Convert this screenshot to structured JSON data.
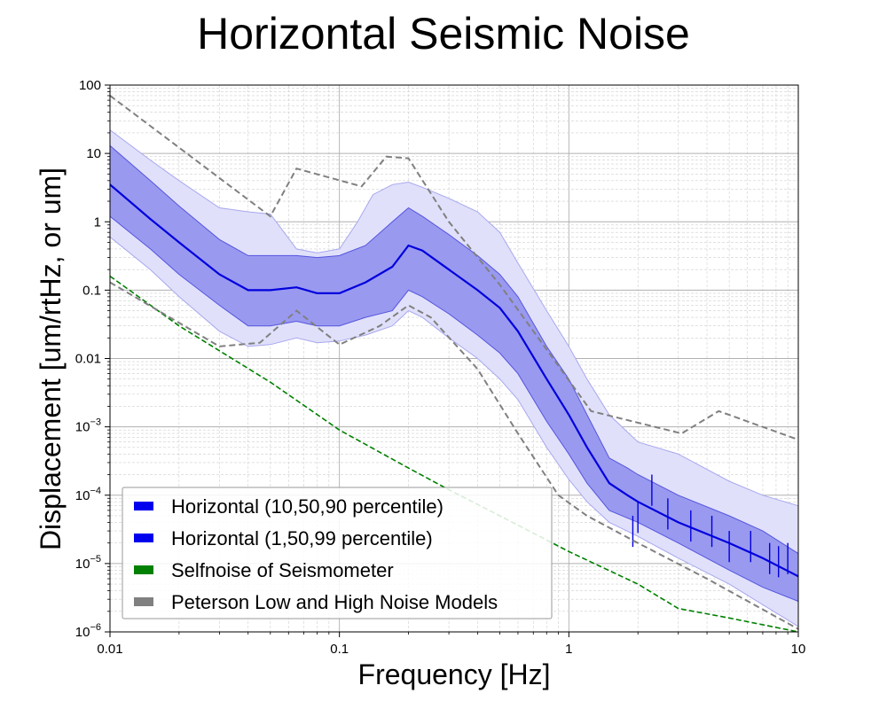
{
  "chart_data": {
    "type": "line",
    "title": "Horizontal Seismic Noise",
    "xlabel": "Frequency [Hz]",
    "ylabel": "Displacement [um/rtHz, or um]",
    "x_scale": "log",
    "y_scale": "log",
    "xlim": [
      0.01,
      10
    ],
    "ylim": [
      1e-06,
      100
    ],
    "grid": true,
    "legend_position": "lower-left",
    "x_ticks": [
      {
        "value": 0.01,
        "label": "0.01"
      },
      {
        "value": 0.1,
        "label": "0.1"
      },
      {
        "value": 1,
        "label": "1"
      },
      {
        "value": 10,
        "label": "10"
      }
    ],
    "y_ticks": [
      {
        "value": 100,
        "label": "100",
        "exp": ""
      },
      {
        "value": 10,
        "label": "10",
        "exp": ""
      },
      {
        "value": 1,
        "label": "1",
        "exp": ""
      },
      {
        "value": 0.1,
        "label": "0.1",
        "exp": ""
      },
      {
        "value": 0.01,
        "label": "0.01",
        "exp": ""
      },
      {
        "value": 0.001,
        "label": "10",
        "exp": "−3"
      },
      {
        "value": 0.0001,
        "label": "10",
        "exp": "−4"
      },
      {
        "value": 1e-05,
        "label": "10",
        "exp": "−5"
      },
      {
        "value": 1e-06,
        "label": "10",
        "exp": "−6"
      }
    ],
    "legend": [
      {
        "label": "Horizontal (10,50,90 percentile)",
        "color": "#0000ee"
      },
      {
        "label": "Horizontal (1,50,99 percentile)",
        "color": "#0000ee"
      },
      {
        "label": "Selfnoise of Seismometer",
        "color": "#008000"
      },
      {
        "label": "Peterson Low and High Noise Models",
        "color": "#808080"
      }
    ],
    "colors": {
      "median": "#0000dd",
      "band_inner": "#9999f0",
      "band_outer": "#e0e0fb",
      "band_outer_edge": "#a8a8ee",
      "band_inner_edge": "#5555dd",
      "selfnoise": "#008000",
      "peterson": "#808080"
    },
    "median_points": [
      [
        0.01,
        3.5
      ],
      [
        0.015,
        1.1
      ],
      [
        0.02,
        0.5
      ],
      [
        0.03,
        0.17
      ],
      [
        0.04,
        0.1
      ],
      [
        0.05,
        0.1
      ],
      [
        0.065,
        0.11
      ],
      [
        0.08,
        0.09
      ],
      [
        0.1,
        0.09
      ],
      [
        0.13,
        0.13
      ],
      [
        0.17,
        0.22
      ],
      [
        0.2,
        0.45
      ],
      [
        0.23,
        0.38
      ],
      [
        0.3,
        0.2
      ],
      [
        0.4,
        0.1
      ],
      [
        0.5,
        0.055
      ],
      [
        0.6,
        0.025
      ],
      [
        0.8,
        0.005
      ],
      [
        1.0,
        0.0015
      ],
      [
        1.2,
        0.0005
      ],
      [
        1.5,
        0.00015
      ],
      [
        1.8,
        0.0001
      ],
      [
        2,
        8e-05
      ],
      [
        3,
        4e-05
      ],
      [
        5,
        2e-05
      ],
      [
        7,
        1.2e-05
      ],
      [
        10,
        6.5e-06
      ]
    ],
    "p10_points": [
      [
        0.01,
        1.2
      ],
      [
        0.015,
        0.4
      ],
      [
        0.02,
        0.17
      ],
      [
        0.03,
        0.06
      ],
      [
        0.04,
        0.03
      ],
      [
        0.05,
        0.03
      ],
      [
        0.065,
        0.035
      ],
      [
        0.08,
        0.03
      ],
      [
        0.1,
        0.03
      ],
      [
        0.13,
        0.04
      ],
      [
        0.17,
        0.05
      ],
      [
        0.2,
        0.1
      ],
      [
        0.23,
        0.08
      ],
      [
        0.3,
        0.045
      ],
      [
        0.4,
        0.022
      ],
      [
        0.5,
        0.012
      ],
      [
        0.6,
        0.006
      ],
      [
        0.8,
        0.0012
      ],
      [
        1.0,
        0.0004
      ],
      [
        1.2,
        0.00015
      ],
      [
        1.5,
        6e-05
      ],
      [
        2,
        4e-05
      ],
      [
        3,
        2e-05
      ],
      [
        5,
        8e-06
      ],
      [
        7,
        4.5e-06
      ],
      [
        10,
        2.8e-06
      ]
    ],
    "p90_points": [
      [
        0.01,
        13
      ],
      [
        0.015,
        4
      ],
      [
        0.02,
        1.7
      ],
      [
        0.03,
        0.55
      ],
      [
        0.04,
        0.32
      ],
      [
        0.05,
        0.32
      ],
      [
        0.065,
        0.32
      ],
      [
        0.08,
        0.3
      ],
      [
        0.1,
        0.32
      ],
      [
        0.13,
        0.45
      ],
      [
        0.17,
        1.0
      ],
      [
        0.2,
        1.6
      ],
      [
        0.23,
        1.2
      ],
      [
        0.3,
        0.65
      ],
      [
        0.4,
        0.32
      ],
      [
        0.5,
        0.17
      ],
      [
        0.6,
        0.08
      ],
      [
        0.8,
        0.015
      ],
      [
        1.0,
        0.005
      ],
      [
        1.2,
        0.0015
      ],
      [
        1.5,
        0.00035
      ],
      [
        1.8,
        0.00025
      ],
      [
        2,
        0.0002
      ],
      [
        3,
        0.0001
      ],
      [
        5,
        5e-05
      ],
      [
        7,
        3e-05
      ],
      [
        10,
        1.4e-05
      ]
    ],
    "p1_points": [
      [
        0.01,
        0.6
      ],
      [
        0.015,
        0.2
      ],
      [
        0.02,
        0.08
      ],
      [
        0.03,
        0.025
      ],
      [
        0.04,
        0.015
      ],
      [
        0.05,
        0.016
      ],
      [
        0.065,
        0.02
      ],
      [
        0.08,
        0.017
      ],
      [
        0.1,
        0.018
      ],
      [
        0.13,
        0.022
      ],
      [
        0.17,
        0.03
      ],
      [
        0.2,
        0.05
      ],
      [
        0.23,
        0.04
      ],
      [
        0.3,
        0.02
      ],
      [
        0.4,
        0.01
      ],
      [
        0.5,
        0.005
      ],
      [
        0.6,
        0.0025
      ],
      [
        0.8,
        0.0005
      ],
      [
        1.0,
        0.00017
      ],
      [
        1.2,
        8e-05
      ],
      [
        1.5,
        4e-05
      ],
      [
        2,
        2.5e-05
      ],
      [
        3,
        1.2e-05
      ],
      [
        5,
        5e-06
      ],
      [
        7,
        2.5e-06
      ],
      [
        10,
        1.2e-06
      ]
    ],
    "p99_points": [
      [
        0.01,
        22
      ],
      [
        0.015,
        8
      ],
      [
        0.02,
        4
      ],
      [
        0.03,
        1.6
      ],
      [
        0.04,
        1.4
      ],
      [
        0.05,
        1.3
      ],
      [
        0.065,
        0.4
      ],
      [
        0.08,
        0.35
      ],
      [
        0.1,
        0.4
      ],
      [
        0.12,
        1.0
      ],
      [
        0.14,
        2.5
      ],
      [
        0.17,
        3.5
      ],
      [
        0.2,
        3.8
      ],
      [
        0.23,
        3.2
      ],
      [
        0.3,
        2.2
      ],
      [
        0.4,
        1.4
      ],
      [
        0.5,
        0.7
      ],
      [
        0.6,
        0.25
      ],
      [
        0.8,
        0.05
      ],
      [
        1.0,
        0.015
      ],
      [
        1.2,
        0.005
      ],
      [
        1.5,
        0.0015
      ],
      [
        2,
        0.0006
      ],
      [
        3,
        0.0004
      ],
      [
        5,
        0.00016
      ],
      [
        7,
        0.0001
      ],
      [
        10,
        7e-05
      ]
    ],
    "selfnoise_points": [
      [
        0.01,
        0.16
      ],
      [
        0.02,
        0.03
      ],
      [
        0.05,
        0.0045
      ],
      [
        0.1,
        0.0009
      ],
      [
        0.2,
        0.00025
      ],
      [
        0.3,
        0.00012
      ],
      [
        0.5,
        5e-05
      ],
      [
        1,
        1.5e-05
      ],
      [
        2,
        5e-06
      ],
      [
        3,
        2.2e-06
      ],
      [
        5,
        1.6e-06
      ],
      [
        10,
        1e-06
      ]
    ],
    "peterson_high_points": [
      [
        0.01,
        70
      ],
      [
        0.05,
        1.2
      ],
      [
        0.065,
        6
      ],
      [
        0.125,
        3.3
      ],
      [
        0.16,
        9
      ],
      [
        0.2,
        8.5
      ],
      [
        0.3,
        1.0
      ],
      [
        0.5,
        0.12
      ],
      [
        1.25,
        0.0017
      ],
      [
        3.1,
        0.0008
      ],
      [
        4.5,
        0.0017
      ],
      [
        10,
        0.00065
      ]
    ],
    "peterson_low_points": [
      [
        0.01,
        0.13
      ],
      [
        0.03,
        0.015
      ],
      [
        0.045,
        0.017
      ],
      [
        0.065,
        0.05
      ],
      [
        0.1,
        0.016
      ],
      [
        0.15,
        0.03
      ],
      [
        0.2,
        0.06
      ],
      [
        0.25,
        0.04
      ],
      [
        0.4,
        0.007
      ],
      [
        0.6,
        0.0008
      ],
      [
        0.9,
        0.0001
      ],
      [
        1.2,
        5e-05
      ],
      [
        2,
        2e-05
      ],
      [
        4,
        6e-06
      ],
      [
        10,
        1.1e-06
      ]
    ],
    "median_spikes": [
      [
        1.9,
        5e-05
      ],
      [
        2.0,
        8e-05
      ],
      [
        2.3,
        0.0002
      ],
      [
        2.7,
        9e-05
      ],
      [
        3.4,
        6e-05
      ],
      [
        4.2,
        5e-05
      ],
      [
        5.0,
        3e-05
      ],
      [
        6.2,
        3e-05
      ],
      [
        7.5,
        2e-05
      ],
      [
        8.2,
        1.8e-05
      ],
      [
        9.0,
        2e-05
      ]
    ]
  }
}
